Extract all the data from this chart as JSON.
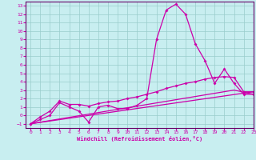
{
  "xlabel": "Windchill (Refroidissement éolien,°C)",
  "xlim": [
    -0.5,
    23
  ],
  "ylim": [
    -1.5,
    13.5
  ],
  "xticks": [
    0,
    1,
    2,
    3,
    4,
    5,
    6,
    7,
    8,
    9,
    10,
    11,
    12,
    13,
    14,
    15,
    16,
    17,
    18,
    19,
    20,
    21,
    22,
    23
  ],
  "yticks": [
    -1,
    0,
    1,
    2,
    3,
    4,
    5,
    6,
    7,
    8,
    9,
    10,
    11,
    12,
    13
  ],
  "background_color": "#c8eef0",
  "grid_color": "#99cccc",
  "line_color": "#cc00aa",
  "line1_x": [
    0,
    1,
    2,
    3,
    4,
    5,
    6,
    7,
    8,
    9,
    10,
    11,
    12,
    13,
    14,
    15,
    16,
    17,
    18,
    19,
    20,
    21,
    22,
    23
  ],
  "line1_y": [
    -1.0,
    -0.5,
    0.0,
    1.5,
    1.0,
    0.5,
    -0.8,
    1.0,
    1.2,
    0.8,
    0.8,
    1.2,
    2.0,
    9.0,
    12.5,
    13.2,
    12.0,
    8.5,
    6.5,
    3.8,
    5.5,
    3.8,
    2.5,
    2.5
  ],
  "line2_x": [
    0,
    1,
    2,
    3,
    4,
    5,
    6,
    7,
    8,
    9,
    10,
    11,
    12,
    13,
    14,
    15,
    16,
    17,
    18,
    19,
    20,
    21,
    22,
    23
  ],
  "line2_y": [
    -1.0,
    -0.2,
    0.5,
    1.7,
    1.3,
    1.3,
    1.1,
    1.4,
    1.6,
    1.7,
    2.0,
    2.2,
    2.5,
    2.8,
    3.2,
    3.5,
    3.8,
    4.0,
    4.3,
    4.5,
    4.6,
    4.5,
    2.8,
    2.8
  ],
  "line3_x": [
    0,
    23
  ],
  "line3_y": [
    -1.0,
    2.8
  ],
  "line4_x": [
    0,
    21,
    23
  ],
  "line4_y": [
    -1.0,
    3.0,
    2.5
  ],
  "marker": "D",
  "markersize": 2.0,
  "linewidth": 0.9
}
